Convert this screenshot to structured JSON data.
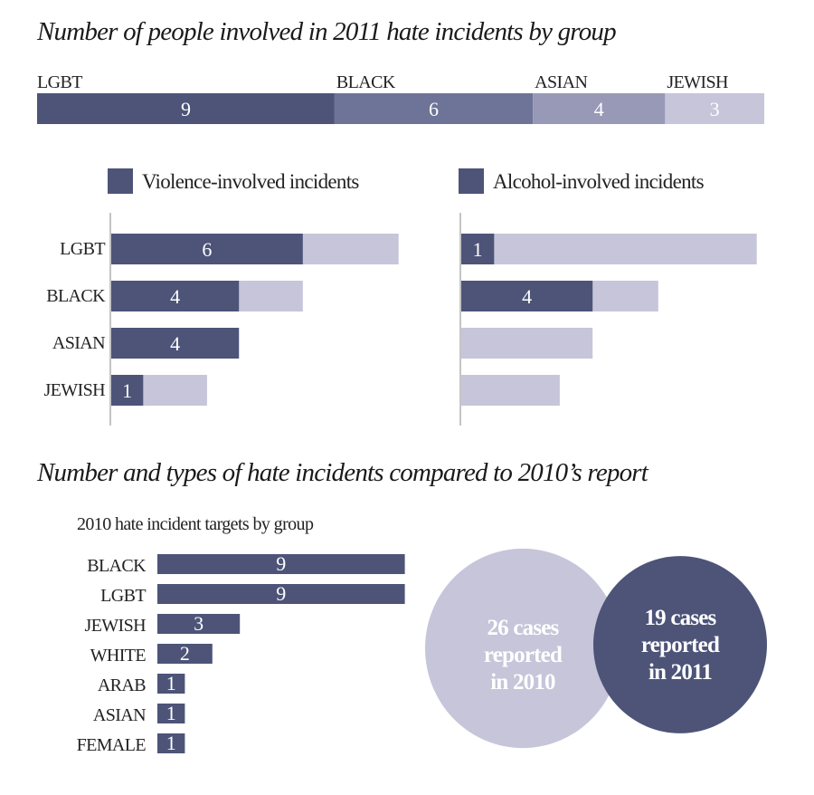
{
  "colors": {
    "dark": "#4d5478",
    "mid": "#6e7497",
    "lightmid": "#9799b6",
    "light": "#c6c5da"
  },
  "chart_data": [
    {
      "type": "bar",
      "stacked": true,
      "title": "Number of people involved in 2011 hate incidents by group",
      "categories": [
        "LGBT",
        "BLACK",
        "ASIAN",
        "JEWISH"
      ],
      "values": [
        9,
        6,
        4,
        3
      ]
    },
    {
      "type": "bar",
      "orientation": "horizontal",
      "legend": "Violence-involved incidents",
      "categories": [
        "LGBT",
        "BLACK",
        "ASIAN",
        "JEWISH"
      ],
      "series": [
        {
          "name": "Violence-involved incidents",
          "values": [
            6,
            4,
            4,
            1
          ]
        }
      ],
      "totals": [
        9,
        6,
        4,
        3
      ]
    },
    {
      "type": "bar",
      "orientation": "horizontal",
      "legend": "Alcohol-involved incidents",
      "categories": [
        "LGBT",
        "BLACK",
        "ASIAN",
        "JEWISH"
      ],
      "series": [
        {
          "name": "Alcohol-involved incidents",
          "values": [
            1,
            4,
            0,
            0
          ]
        }
      ],
      "totals": [
        9,
        6,
        4,
        3
      ]
    },
    {
      "type": "bar",
      "orientation": "horizontal",
      "title": "2010 hate incident targets by group",
      "categories": [
        "BLACK",
        "LGBT",
        "JEWISH",
        "WHITE",
        "ARAB",
        "ASIAN",
        "FEMALE"
      ],
      "values": [
        9,
        9,
        3,
        2,
        1,
        1,
        1
      ]
    }
  ],
  "section2_title": "Number and types of hate incidents compared to 2010’s report",
  "circles": [
    {
      "lines": [
        "26 cases",
        "reported",
        "in 2010"
      ],
      "value": 26
    },
    {
      "lines": [
        "19 cases",
        "reported",
        "in 2011"
      ],
      "value": 19
    }
  ]
}
